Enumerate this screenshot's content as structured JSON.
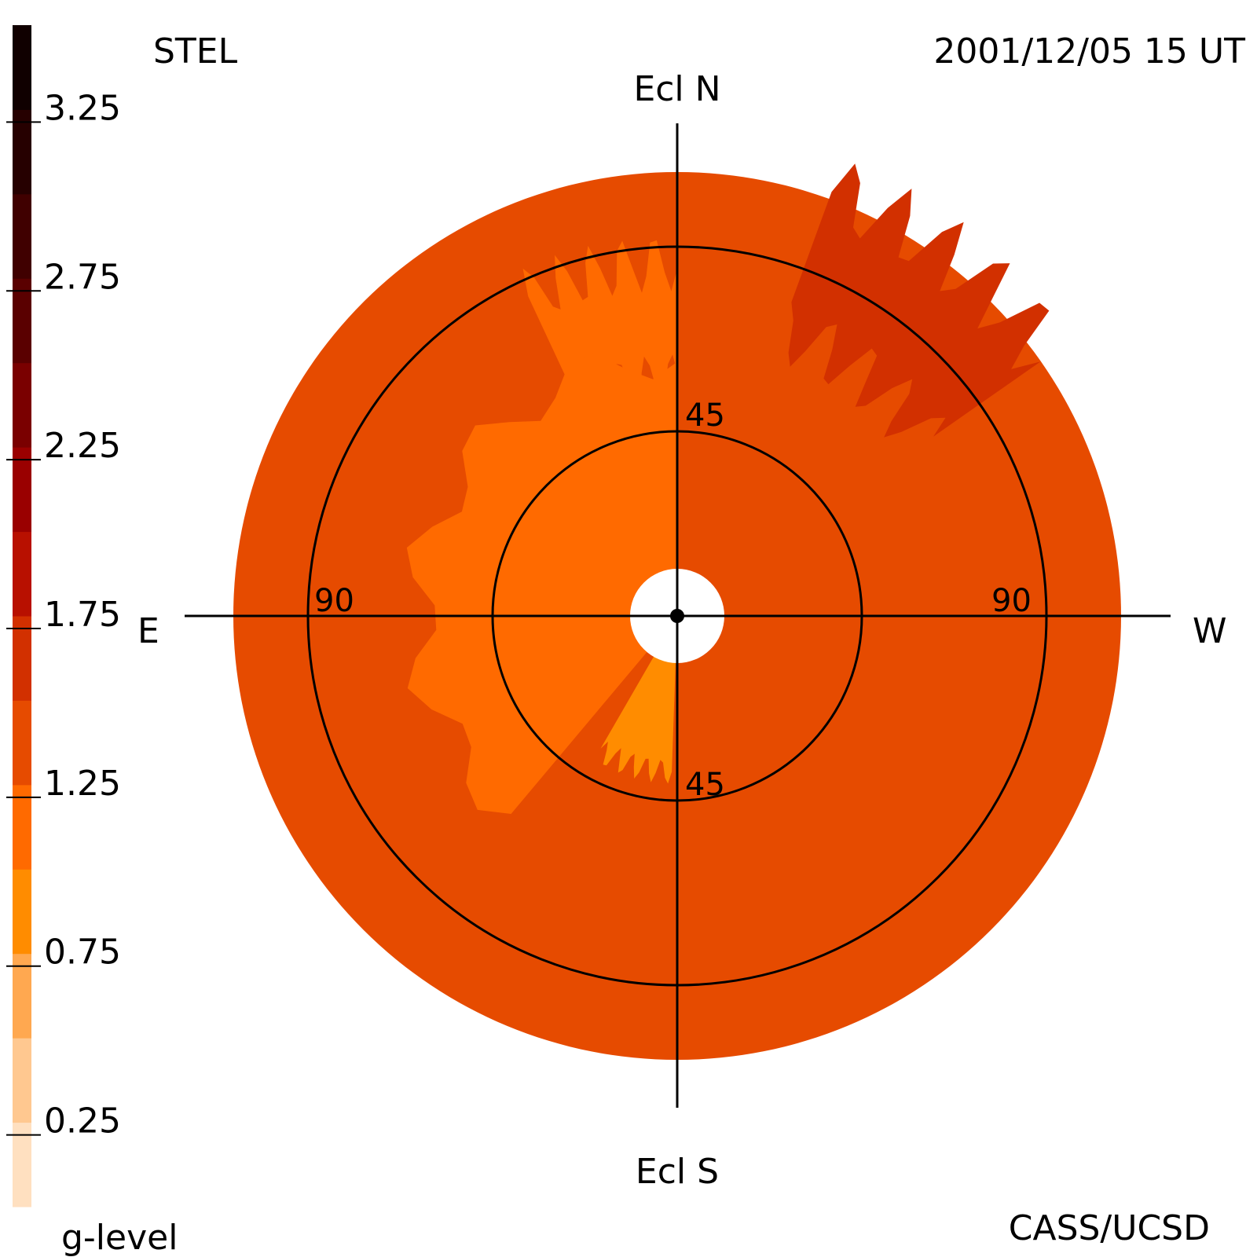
{
  "header": {
    "instrument": "STEL",
    "timestamp": "2001/12/05 15 UT"
  },
  "footer": {
    "colorbar_label": "g-level",
    "credit": "CASS/UCSD"
  },
  "chart_data": {
    "type": "heatmap",
    "projection": "fisheye sky map centered on the Sun",
    "directions": {
      "north": "Ecl N",
      "south": "Ecl S",
      "east": "E",
      "west": "W"
    },
    "ring_labels": {
      "inner_top": "45",
      "inner_bottom": "45",
      "outer_left": "90",
      "outer_right": "90"
    },
    "rings_deg": [
      45,
      90
    ],
    "map_extent_deg": 110,
    "colorbar": {
      "tick_labels": [
        "3.25",
        "2.75",
        "2.25",
        "1.75",
        "1.25",
        "0.75",
        "0.25"
      ],
      "tick_values": [
        3.25,
        2.75,
        2.25,
        1.75,
        1.25,
        0.75,
        0.25
      ],
      "range": [
        0,
        3.5
      ],
      "levels": [
        {
          "from": 0.0,
          "to": 0.25,
          "color": "#ffe0c0"
        },
        {
          "from": 0.25,
          "to": 0.5,
          "color": "#ffc890"
        },
        {
          "from": 0.5,
          "to": 0.75,
          "color": "#ffa850"
        },
        {
          "from": 0.75,
          "to": 1.0,
          "color": "#ff8c00"
        },
        {
          "from": 1.0,
          "to": 1.25,
          "color": "#ff6a00"
        },
        {
          "from": 1.25,
          "to": 1.5,
          "color": "#e64b00"
        },
        {
          "from": 1.5,
          "to": 1.75,
          "color": "#d23000"
        },
        {
          "from": 1.75,
          "to": 2.0,
          "color": "#b81000"
        },
        {
          "from": 2.0,
          "to": 2.25,
          "color": "#9a0000"
        },
        {
          "from": 2.25,
          "to": 2.5,
          "color": "#7a0000"
        },
        {
          "from": 2.5,
          "to": 2.75,
          "color": "#5a0000"
        },
        {
          "from": 2.75,
          "to": 3.0,
          "color": "#400000"
        },
        {
          "from": 3.0,
          "to": 3.25,
          "color": "#260000"
        },
        {
          "from": 3.25,
          "to": 3.5,
          "color": "#100000"
        }
      ]
    },
    "background_level": 1.25,
    "regions": [
      {
        "name": "enhanced-region-nw",
        "level": 1.75,
        "color": "#d23000",
        "elongation_deg": [
          74,
          110
        ],
        "position_angle_deg": [
          20,
          55
        ]
      },
      {
        "name": "depleted-region-ne",
        "level": 1.0,
        "color": "#ff6a00",
        "elongation_deg": [
          58,
          86
        ],
        "position_angle_deg": [
          -25,
          0
        ]
      },
      {
        "name": "depleted-region-inner-e",
        "level": 1.0,
        "color": "#ff6a00",
        "elongation_deg": [
          10,
          63
        ],
        "position_angle_deg": [
          -140,
          0
        ]
      },
      {
        "name": "depleted-region-inner-se",
        "level": 0.75,
        "color": "#ff8c00",
        "elongation_deg": [
          10,
          38
        ],
        "position_angle_deg": [
          -178,
          -150
        ]
      }
    ]
  }
}
